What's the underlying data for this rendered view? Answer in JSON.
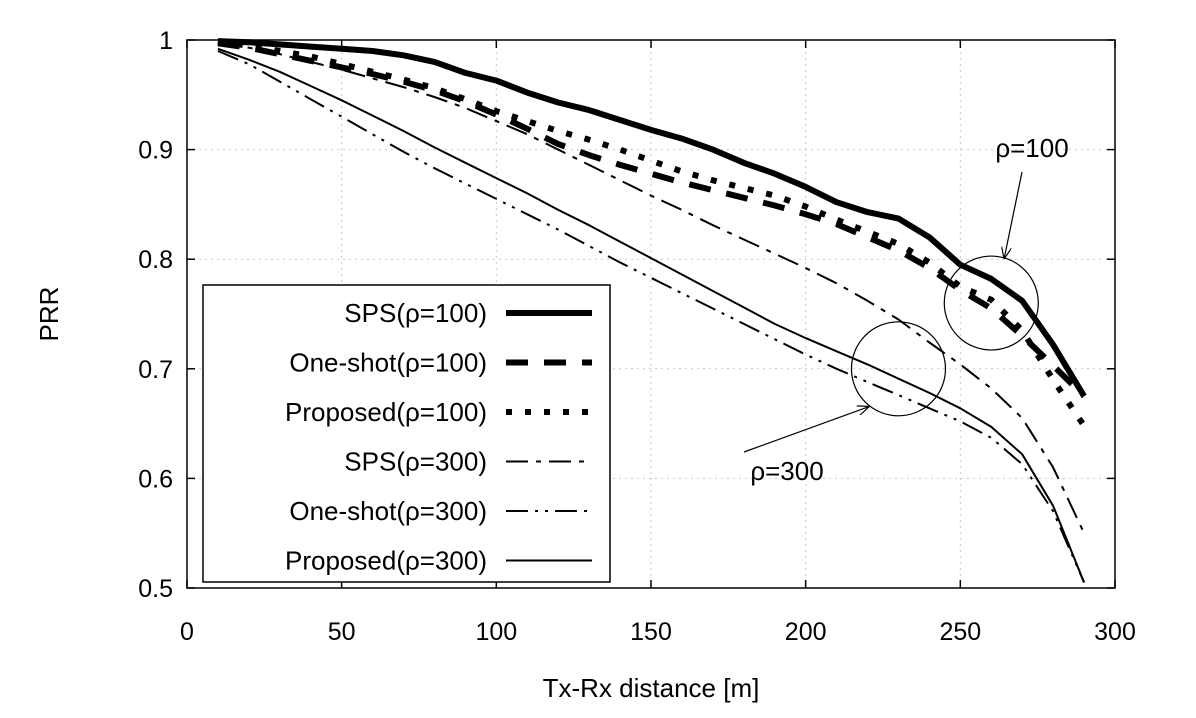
{
  "chart_data": {
    "type": "line",
    "title": "",
    "xlabel": "Tx-Rx distance [m]",
    "ylabel": "PRR",
    "xlim": [
      0,
      300
    ],
    "ylim": [
      0.5,
      1
    ],
    "xticks": [
      "0",
      "50",
      "100",
      "150",
      "200",
      "250",
      "300"
    ],
    "yticks": [
      "0.5",
      "0.6",
      "0.7",
      "0.8",
      "0.9",
      "1"
    ],
    "grid": true,
    "legend_position": "bottom-left",
    "x": [
      10,
      20,
      30,
      40,
      50,
      60,
      70,
      80,
      90,
      100,
      110,
      120,
      130,
      140,
      150,
      160,
      170,
      180,
      190,
      200,
      210,
      220,
      230,
      240,
      250,
      260,
      270,
      280,
      290
    ],
    "series": [
      {
        "name": "SPS(ρ=100)",
        "style": "thick-solid",
        "values": [
          0.999,
          0.998,
          0.996,
          0.994,
          0.992,
          0.99,
          0.986,
          0.98,
          0.97,
          0.963,
          0.952,
          0.943,
          0.936,
          0.927,
          0.918,
          0.91,
          0.9,
          0.888,
          0.878,
          0.866,
          0.852,
          0.843,
          0.837,
          0.82,
          0.795,
          0.782,
          0.762,
          0.722,
          0.675
        ]
      },
      {
        "name": "One-shot(ρ=100)",
        "style": "thick-dash",
        "values": [
          0.997,
          0.993,
          0.987,
          0.981,
          0.975,
          0.969,
          0.962,
          0.954,
          0.944,
          0.932,
          0.919,
          0.905,
          0.895,
          0.886,
          0.878,
          0.87,
          0.863,
          0.856,
          0.849,
          0.841,
          0.832,
          0.82,
          0.808,
          0.792,
          0.772,
          0.755,
          0.73,
          0.703,
          0.675
        ]
      },
      {
        "name": "Proposed(ρ=100)",
        "style": "thick-dot",
        "values": [
          0.998,
          0.995,
          0.99,
          0.985,
          0.978,
          0.971,
          0.964,
          0.956,
          0.946,
          0.935,
          0.926,
          0.917,
          0.909,
          0.9,
          0.89,
          0.88,
          0.872,
          0.865,
          0.858,
          0.848,
          0.836,
          0.825,
          0.814,
          0.797,
          0.775,
          0.763,
          0.735,
          0.69,
          0.648
        ]
      },
      {
        "name": "SPS(ρ=300)",
        "style": "dash-dot",
        "values": [
          0.997,
          0.993,
          0.987,
          0.98,
          0.973,
          0.965,
          0.957,
          0.948,
          0.938,
          0.926,
          0.914,
          0.9,
          0.886,
          0.872,
          0.858,
          0.845,
          0.831,
          0.818,
          0.805,
          0.792,
          0.778,
          0.762,
          0.745,
          0.724,
          0.704,
          0.682,
          0.655,
          0.61,
          0.55
        ]
      },
      {
        "name": "One-shot(ρ=300)",
        "style": "dash-dot-dot",
        "values": [
          0.99,
          0.978,
          0.962,
          0.946,
          0.93,
          0.914,
          0.898,
          0.883,
          0.869,
          0.855,
          0.841,
          0.827,
          0.812,
          0.797,
          0.783,
          0.769,
          0.755,
          0.741,
          0.727,
          0.713,
          0.7,
          0.688,
          0.676,
          0.664,
          0.652,
          0.637,
          0.613,
          0.57,
          0.505
        ]
      },
      {
        "name": "Proposed(ρ=300)",
        "style": "thin-solid",
        "values": [
          0.992,
          0.982,
          0.971,
          0.958,
          0.945,
          0.931,
          0.917,
          0.902,
          0.888,
          0.874,
          0.86,
          0.845,
          0.831,
          0.816,
          0.801,
          0.786,
          0.771,
          0.756,
          0.741,
          0.728,
          0.716,
          0.704,
          0.691,
          0.678,
          0.664,
          0.647,
          0.622,
          0.575,
          0.505
        ]
      }
    ],
    "annotations": [
      {
        "text": "ρ=100",
        "target_x": 260,
        "target_y": 0.76
      },
      {
        "text": "ρ=300",
        "target_x": 230,
        "target_y": 0.7
      }
    ]
  }
}
